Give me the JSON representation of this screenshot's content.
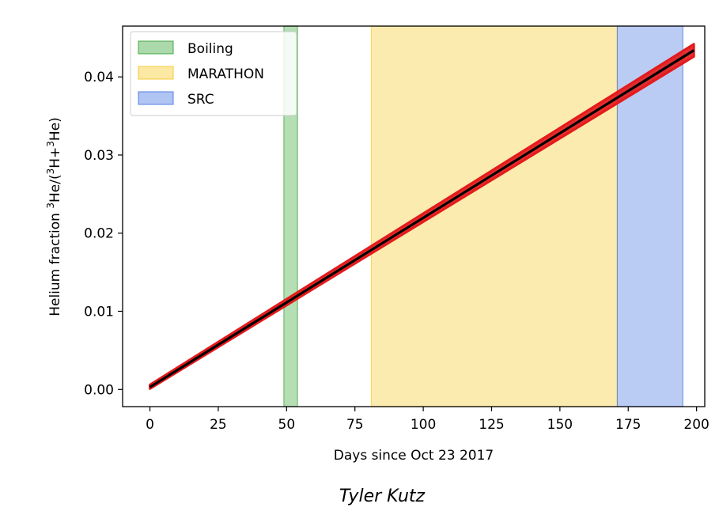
{
  "chart_data": {
    "type": "line",
    "title": "",
    "xlabel": "Days since Oct 23 2017",
    "ylabel_parts": [
      "Helium fraction ",
      "3",
      "He/(",
      "3",
      "H+",
      "3",
      "He)"
    ],
    "xlim": [
      -10,
      203
    ],
    "ylim": [
      -0.0022,
      0.0465
    ],
    "xticks": [
      0,
      25,
      50,
      75,
      100,
      125,
      150,
      175,
      200
    ],
    "yticks": [
      0.0,
      0.01,
      0.02,
      0.03,
      0.04
    ],
    "ytick_labels": [
      "0.00",
      "0.01",
      "0.02",
      "0.03",
      "0.04"
    ],
    "grid": false,
    "legend_placement": "upper-left",
    "regions": [
      {
        "name": "Boiling",
        "x_start": 49,
        "x_end": 54,
        "color": "#2ca02c"
      },
      {
        "name": "MARATHON",
        "x_start": 81,
        "x_end": 171,
        "color": "#f5c518"
      },
      {
        "name": "SRC",
        "x_start": 171,
        "x_end": 195,
        "color": "#3b6ee0"
      }
    ],
    "series": [
      {
        "style": "band",
        "color": "#e41a1c",
        "x": [
          0,
          199
        ],
        "y_low": [
          0.0001,
          0.0426
        ],
        "y_high": [
          0.0006,
          0.0442
        ]
      },
      {
        "style": "line",
        "color": "#000000",
        "x": [
          0,
          199
        ],
        "y": [
          0.0003,
          0.0434
        ]
      }
    ]
  },
  "credit": "Tyler Kutz"
}
